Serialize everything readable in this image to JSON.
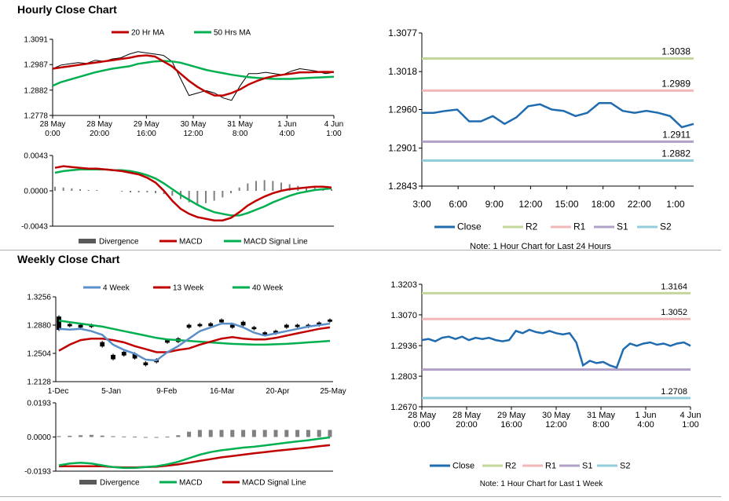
{
  "sections": {
    "hourly_title": "Hourly Close Chart",
    "weekly_title": "Weekly Close Chart"
  },
  "colors": {
    "ma_short": "#c00000",
    "ma_long": "#00b050",
    "close": "#1f6bb0",
    "week4": "#5b8fc9",
    "R2": "#c4d79b",
    "R1": "#f2b8b8",
    "S1": "#b1a0c7",
    "S2": "#92cddc",
    "divergence": "#808080"
  },
  "chart_data": [
    {
      "id": "hourly_price",
      "type": "line",
      "legend": [
        "20 Hr MA",
        "50 Hrs MA"
      ],
      "y_ticks": [
        "1.3091",
        "1.2987",
        "1.2882",
        "1.2778"
      ],
      "ylim": [
        1.2778,
        1.3091
      ],
      "x_ticks": [
        [
          "28 May",
          "0:00"
        ],
        [
          "28 May",
          "20:00"
        ],
        [
          "29 May",
          "16:00"
        ],
        [
          "30 May",
          "12:00"
        ],
        [
          "31 May",
          "8:00"
        ],
        [
          "1 Jun",
          "4:00"
        ],
        [
          "4 Jun",
          "1:00"
        ]
      ],
      "price": [
        1.297,
        1.2985,
        1.299,
        1.2995,
        1.2992,
        1.3005,
        1.3,
        1.301,
        1.3015,
        1.303,
        1.304,
        1.3035,
        1.303,
        1.3025,
        1.3,
        1.293,
        1.286,
        1.287,
        1.288,
        1.287,
        1.285,
        1.284,
        1.29,
        1.295,
        1.295,
        1.2955,
        1.295,
        1.2945,
        1.296,
        1.297,
        1.2965,
        1.296,
        1.295,
        1.2955
      ],
      "series": [
        {
          "name": "20 Hr MA",
          "values": [
            1.297,
            1.2975,
            1.298,
            1.2985,
            1.299,
            1.2995,
            1.3,
            1.3005,
            1.301,
            1.3015,
            1.3022,
            1.3025,
            1.302,
            1.3,
            1.298,
            1.295,
            1.292,
            1.2895,
            1.2875,
            1.286,
            1.286,
            1.287,
            1.2885,
            1.2905,
            1.292,
            1.2932,
            1.294,
            1.2945,
            1.295,
            1.2955,
            1.2955,
            1.2956,
            1.2957,
            1.2956
          ]
        },
        {
          "name": "50 Hrs MA",
          "values": [
            1.29,
            1.2915,
            1.2925,
            1.2935,
            1.2945,
            1.2955,
            1.2963,
            1.297,
            1.2975,
            1.298,
            1.299,
            1.2995,
            1.3,
            1.3002,
            1.3,
            1.2995,
            1.2985,
            1.2975,
            1.2965,
            1.2958,
            1.2952,
            1.2945,
            1.294,
            1.2935,
            1.2932,
            1.293,
            1.2928,
            1.2928,
            1.2928,
            1.293,
            1.2932,
            1.2934,
            1.2935,
            1.2937
          ]
        }
      ]
    },
    {
      "id": "hourly_macd",
      "type": "line",
      "legend": [
        "Divergence",
        "MACD",
        "MACD Signal Line"
      ],
      "y_ticks": [
        "0.0043",
        "0.0000",
        "-0.0043"
      ],
      "ylim": [
        -0.0043,
        0.0043
      ],
      "series": [
        {
          "name": "Divergence",
          "values": [
            0.0005,
            0.0004,
            0.0003,
            0.0002,
            0.0001,
            0.0001,
            0.0,
            0.0,
            -0.0001,
            -0.0002,
            -0.0002,
            -0.0002,
            -0.0003,
            -0.0004,
            -0.0006,
            -0.001,
            -0.0014,
            -0.0016,
            -0.0015,
            -0.0012,
            -0.0008,
            -0.0003,
            0.0004,
            0.0009,
            0.0012,
            0.0013,
            0.0012,
            0.001,
            0.0008,
            0.0006,
            0.0005,
            0.0004,
            0.0003,
            0.0002
          ]
        },
        {
          "name": "MACD",
          "values": [
            0.0028,
            0.003,
            0.0029,
            0.0028,
            0.0027,
            0.0027,
            0.0026,
            0.0025,
            0.0024,
            0.0022,
            0.002,
            0.0016,
            0.001,
            0.0,
            -0.0012,
            -0.0022,
            -0.0028,
            -0.0032,
            -0.0034,
            -0.0036,
            -0.0036,
            -0.0033,
            -0.0026,
            -0.0018,
            -0.0012,
            -0.0007,
            -0.0003,
            0.0,
            0.0002,
            0.0003,
            0.0004,
            0.0005,
            0.0005,
            0.0004
          ]
        },
        {
          "name": "MACD Signal Line",
          "values": [
            0.0022,
            0.0024,
            0.0025,
            0.0026,
            0.0026,
            0.0026,
            0.0026,
            0.0025,
            0.0025,
            0.0024,
            0.0022,
            0.0019,
            0.0015,
            0.0009,
            0.0002,
            -0.0005,
            -0.0011,
            -0.0017,
            -0.0022,
            -0.0026,
            -0.0028,
            -0.003,
            -0.003,
            -0.0027,
            -0.0023,
            -0.0019,
            -0.0014,
            -0.001,
            -0.0006,
            -0.0003,
            -0.0001,
            0.0001,
            0.0002,
            0.0003
          ]
        }
      ]
    },
    {
      "id": "hourly_levels",
      "type": "line",
      "y_ticks": [
        "1.3077",
        "1.3018",
        "1.2960",
        "1.2901",
        "1.2843"
      ],
      "ylim": [
        1.2843,
        1.3077
      ],
      "x_ticks": [
        "3:00",
        "6:00",
        "9:00",
        "12:00",
        "15:00",
        "18:00",
        "22:00",
        "1:00"
      ],
      "close": [
        1.2955,
        1.2955,
        1.2958,
        1.296,
        1.2942,
        1.2942,
        1.295,
        1.2938,
        1.2948,
        1.2965,
        1.2968,
        1.296,
        1.2958,
        1.295,
        1.2955,
        1.297,
        1.297,
        1.2958,
        1.2955,
        1.2958,
        1.2955,
        1.295,
        1.2933,
        1.2938
      ],
      "levels": [
        {
          "name": "R2",
          "value": 1.3038,
          "label": "1.3038"
        },
        {
          "name": "R1",
          "value": 1.2989,
          "label": "1.2989"
        },
        {
          "name": "S1",
          "value": 1.2911,
          "label": "1.2911"
        },
        {
          "name": "S2",
          "value": 1.2882,
          "label": "1.2882"
        }
      ],
      "legend": [
        "Close",
        "R2",
        "R1",
        "S1",
        "S2"
      ],
      "note": "Note: 1 Hour Chart for Last 24 Hours"
    },
    {
      "id": "weekly_price",
      "type": "line",
      "legend": [
        "4 Week",
        "13 Week",
        "40 Week"
      ],
      "y_ticks": [
        "1.3256",
        "1.2880",
        "1.2504",
        "1.2128"
      ],
      "ylim": [
        1.2128,
        1.3256
      ],
      "x_ticks": [
        "1-Dec",
        "5-Jan",
        "9-Feb",
        "16-Mar",
        "20-Apr",
        "25-May"
      ],
      "candles": [
        [
          1.299,
          1.282
        ],
        [
          1.289,
          1.287
        ],
        [
          1.288,
          1.285
        ],
        [
          1.288,
          1.286
        ],
        [
          1.265,
          1.26
        ],
        [
          1.248,
          1.243
        ],
        [
          1.252,
          1.248
        ],
        [
          1.25,
          1.244
        ],
        [
          1.238,
          1.235
        ],
        [
          1.242,
          1.239
        ],
        [
          1.268,
          1.265
        ],
        [
          1.27,
          1.266
        ],
        [
          1.288,
          1.285
        ],
        [
          1.289,
          1.287
        ],
        [
          1.29,
          1.287
        ],
        [
          1.295,
          1.292
        ],
        [
          1.288,
          1.285
        ],
        [
          1.292,
          1.288
        ],
        [
          1.285,
          1.283
        ],
        [
          1.278,
          1.275
        ],
        [
          1.28,
          1.277
        ],
        [
          1.288,
          1.285
        ],
        [
          1.288,
          1.286
        ],
        [
          1.288,
          1.286
        ],
        [
          1.291,
          1.288
        ],
        [
          1.295,
          1.293
        ]
      ],
      "series": [
        {
          "name": "4 Week",
          "values": [
            1.283,
            1.282,
            1.283,
            1.28,
            1.275,
            1.262,
            1.255,
            1.25,
            1.242,
            1.241,
            1.252,
            1.26,
            1.27,
            1.28,
            1.285,
            1.29,
            1.29,
            1.285,
            1.278,
            1.274,
            1.277,
            1.28,
            1.283,
            1.286,
            1.288,
            1.29
          ]
        },
        {
          "name": "13 Week",
          "values": [
            1.254,
            1.262,
            1.268,
            1.27,
            1.27,
            1.268,
            1.265,
            1.26,
            1.256,
            1.252,
            1.252,
            1.255,
            1.257,
            1.262,
            1.266,
            1.27,
            1.272,
            1.27,
            1.269,
            1.269,
            1.271,
            1.274,
            1.277,
            1.28,
            1.283,
            1.285
          ]
        },
        {
          "name": "40 Week",
          "values": [
            1.294,
            1.292,
            1.29,
            1.288,
            1.286,
            1.283,
            1.28,
            1.277,
            1.274,
            1.271,
            1.269,
            1.268,
            1.267,
            1.266,
            1.265,
            1.264,
            1.263,
            1.2625,
            1.262,
            1.262,
            1.2625,
            1.263,
            1.264,
            1.265,
            1.266,
            1.267
          ]
        }
      ]
    },
    {
      "id": "weekly_macd",
      "type": "line",
      "legend": [
        "Divergence",
        "MACD",
        "MACD Signal Line"
      ],
      "y_ticks": [
        "0.0193",
        "0.0000",
        "-0.0193"
      ],
      "ylim": [
        -0.0193,
        0.0193
      ],
      "series": [
        {
          "name": "Divergence",
          "values": [
            0.0005,
            0.0007,
            0.001,
            0.0012,
            0.0008,
            0.0005,
            0.0003,
            0.0002,
            0.0,
            0.0,
            0.0002,
            0.001,
            0.003,
            0.004,
            0.004,
            0.004,
            0.004,
            0.004,
            0.004,
            0.004,
            0.004,
            0.004,
            0.004,
            0.004,
            0.004,
            0.004
          ]
        },
        {
          "name": "MACD",
          "values": [
            -0.016,
            -0.015,
            -0.0145,
            -0.015,
            -0.016,
            -0.017,
            -0.0175,
            -0.0175,
            -0.017,
            -0.0165,
            -0.0155,
            -0.014,
            -0.012,
            -0.01,
            -0.0085,
            -0.0075,
            -0.0068,
            -0.006,
            -0.0055,
            -0.0048,
            -0.004,
            -0.0032,
            -0.0025,
            -0.0018,
            -0.001,
            -0.0002
          ]
        },
        {
          "name": "MACD Signal Line",
          "values": [
            -0.0165,
            -0.0165,
            -0.0165,
            -0.0165,
            -0.0165,
            -0.017,
            -0.0172,
            -0.0172,
            -0.017,
            -0.0168,
            -0.0162,
            -0.0155,
            -0.0145,
            -0.0135,
            -0.0125,
            -0.0115,
            -0.0108,
            -0.01,
            -0.0092,
            -0.0085,
            -0.0078,
            -0.0072,
            -0.0066,
            -0.006,
            -0.0052,
            -0.0046
          ]
        }
      ]
    },
    {
      "id": "weekly_levels",
      "type": "line",
      "y_ticks": [
        "1.3203",
        "1.3070",
        "1.2936",
        "1.2803",
        "1.2670"
      ],
      "ylim": [
        1.267,
        1.3203
      ],
      "x_ticks": [
        [
          "28 May",
          "0:00"
        ],
        [
          "28 May",
          "20:00"
        ],
        [
          "29 May",
          "16:00"
        ],
        [
          "30 May",
          "12:00"
        ],
        [
          "31 May",
          "8:00"
        ],
        [
          "1 Jun",
          "4:00"
        ],
        [
          "4 Jun",
          "1:00"
        ]
      ],
      "close": [
        1.296,
        1.2965,
        1.2955,
        1.297,
        1.2975,
        1.2965,
        1.2975,
        1.296,
        1.297,
        1.2965,
        1.297,
        1.296,
        1.2955,
        1.296,
        1.3,
        1.299,
        1.3005,
        1.2995,
        1.299,
        1.3,
        1.299,
        1.2985,
        1.299,
        1.295,
        1.285,
        1.287,
        1.286,
        1.2865,
        1.285,
        1.284,
        1.292,
        1.2945,
        1.2935,
        1.2945,
        1.295,
        1.294,
        1.2945,
        1.2935,
        1.2945,
        1.295,
        1.2935
      ],
      "levels": [
        {
          "name": "R2",
          "value": 1.3164,
          "label": "1.3164"
        },
        {
          "name": "R1",
          "value": 1.3052,
          "label": "1.3052"
        },
        {
          "name": "S1",
          "value": 1.2832,
          "label": ""
        },
        {
          "name": "S2",
          "value": 1.2708,
          "label": "1.2708"
        }
      ],
      "legend": [
        "Close",
        "R2",
        "R1",
        "S1",
        "S2"
      ],
      "note": "Note: 1 Hour Chart for  Last 1 Week"
    }
  ]
}
